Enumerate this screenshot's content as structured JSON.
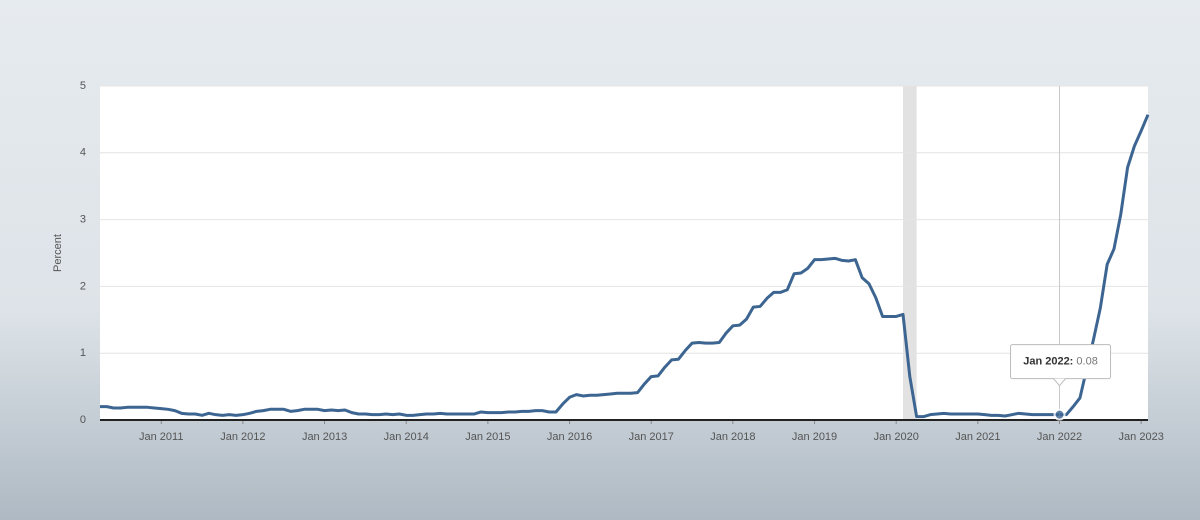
{
  "chart_data": {
    "type": "line",
    "y_label": "Percent",
    "ylim": [
      0,
      5
    ],
    "yticks": [
      0,
      1,
      2,
      3,
      4,
      5
    ],
    "grid": true,
    "xlim": [
      "2010-04",
      "2023-02"
    ],
    "xticks": [
      {
        "value": "2011-01",
        "label": "Jan 2011"
      },
      {
        "value": "2012-01",
        "label": "Jan 2012"
      },
      {
        "value": "2013-01",
        "label": "Jan 2013"
      },
      {
        "value": "2014-01",
        "label": "Jan 2014"
      },
      {
        "value": "2015-01",
        "label": "Jan 2015"
      },
      {
        "value": "2016-01",
        "label": "Jan 2016"
      },
      {
        "value": "2017-01",
        "label": "Jan 2017"
      },
      {
        "value": "2018-01",
        "label": "Jan 2018"
      },
      {
        "value": "2019-01",
        "label": "Jan 2019"
      },
      {
        "value": "2020-01",
        "label": "Jan 2020"
      },
      {
        "value": "2021-01",
        "label": "Jan 2021"
      },
      {
        "value": "2022-01",
        "label": "Jan 2022"
      },
      {
        "value": "2023-01",
        "label": "Jan 2023"
      }
    ],
    "shading": [
      {
        "start": "2020-02",
        "end": "2020-04"
      }
    ],
    "color": "#3d6591",
    "tooltip": {
      "label": "Jan 2022:",
      "x": "2022-01"
    },
    "x": [
      "2010-04",
      "2010-05",
      "2010-06",
      "2010-07",
      "2010-08",
      "2010-09",
      "2010-10",
      "2010-11",
      "2010-12",
      "2011-01",
      "2011-02",
      "2011-03",
      "2011-04",
      "2011-05",
      "2011-06",
      "2011-07",
      "2011-08",
      "2011-09",
      "2011-10",
      "2011-11",
      "2011-12",
      "2012-01",
      "2012-02",
      "2012-03",
      "2012-04",
      "2012-05",
      "2012-06",
      "2012-07",
      "2012-08",
      "2012-09",
      "2012-10",
      "2012-11",
      "2012-12",
      "2013-01",
      "2013-02",
      "2013-03",
      "2013-04",
      "2013-05",
      "2013-06",
      "2013-07",
      "2013-08",
      "2013-09",
      "2013-10",
      "2013-11",
      "2013-12",
      "2014-01",
      "2014-02",
      "2014-03",
      "2014-04",
      "2014-05",
      "2014-06",
      "2014-07",
      "2014-08",
      "2014-09",
      "2014-10",
      "2014-11",
      "2014-12",
      "2015-01",
      "2015-02",
      "2015-03",
      "2015-04",
      "2015-05",
      "2015-06",
      "2015-07",
      "2015-08",
      "2015-09",
      "2015-10",
      "2015-11",
      "2015-12",
      "2016-01",
      "2016-02",
      "2016-03",
      "2016-04",
      "2016-05",
      "2016-06",
      "2016-07",
      "2016-08",
      "2016-09",
      "2016-10",
      "2016-11",
      "2016-12",
      "2017-01",
      "2017-02",
      "2017-03",
      "2017-04",
      "2017-05",
      "2017-06",
      "2017-07",
      "2017-08",
      "2017-09",
      "2017-10",
      "2017-11",
      "2017-12",
      "2018-01",
      "2018-02",
      "2018-03",
      "2018-04",
      "2018-05",
      "2018-06",
      "2018-07",
      "2018-08",
      "2018-09",
      "2018-10",
      "2018-11",
      "2018-12",
      "2019-01",
      "2019-02",
      "2019-03",
      "2019-04",
      "2019-05",
      "2019-06",
      "2019-07",
      "2019-08",
      "2019-09",
      "2019-10",
      "2019-11",
      "2019-12",
      "2020-01",
      "2020-02",
      "2020-03",
      "2020-04",
      "2020-05",
      "2020-06",
      "2020-07",
      "2020-08",
      "2020-09",
      "2020-10",
      "2020-11",
      "2020-12",
      "2021-01",
      "2021-02",
      "2021-03",
      "2021-04",
      "2021-05",
      "2021-06",
      "2021-07",
      "2021-08",
      "2021-09",
      "2021-10",
      "2021-11",
      "2021-12",
      "2022-01",
      "2022-02",
      "2022-03",
      "2022-04",
      "2022-05",
      "2022-06",
      "2022-07",
      "2022-08",
      "2022-09",
      "2022-10",
      "2022-11",
      "2022-12",
      "2023-01",
      "2023-02"
    ],
    "values": [
      0.2,
      0.2,
      0.18,
      0.18,
      0.19,
      0.19,
      0.19,
      0.19,
      0.18,
      0.17,
      0.16,
      0.14,
      0.1,
      0.09,
      0.09,
      0.07,
      0.1,
      0.08,
      0.07,
      0.08,
      0.07,
      0.08,
      0.1,
      0.13,
      0.14,
      0.16,
      0.16,
      0.16,
      0.13,
      0.14,
      0.16,
      0.16,
      0.16,
      0.14,
      0.15,
      0.14,
      0.15,
      0.11,
      0.09,
      0.09,
      0.08,
      0.08,
      0.09,
      0.08,
      0.09,
      0.07,
      0.07,
      0.08,
      0.09,
      0.09,
      0.1,
      0.09,
      0.09,
      0.09,
      0.09,
      0.09,
      0.12,
      0.11,
      0.11,
      0.11,
      0.12,
      0.12,
      0.13,
      0.13,
      0.14,
      0.14,
      0.12,
      0.12,
      0.24,
      0.34,
      0.38,
      0.36,
      0.37,
      0.37,
      0.38,
      0.39,
      0.4,
      0.4,
      0.4,
      0.41,
      0.54,
      0.65,
      0.66,
      0.79,
      0.9,
      0.91,
      1.04,
      1.15,
      1.16,
      1.15,
      1.15,
      1.16,
      1.3,
      1.41,
      1.42,
      1.51,
      1.69,
      1.7,
      1.82,
      1.91,
      1.91,
      1.95,
      2.19,
      2.2,
      2.27,
      2.4,
      2.4,
      2.41,
      2.42,
      2.39,
      2.38,
      2.4,
      2.13,
      2.04,
      1.83,
      1.55,
      1.55,
      1.55,
      1.58,
      0.65,
      0.05,
      0.05,
      0.08,
      0.09,
      0.1,
      0.09,
      0.09,
      0.09,
      0.09,
      0.09,
      0.08,
      0.07,
      0.07,
      0.06,
      0.08,
      0.1,
      0.09,
      0.08,
      0.08,
      0.08,
      0.08,
      0.08,
      0.08,
      0.2,
      0.33,
      0.77,
      1.21,
      1.68,
      2.33,
      2.56,
      3.08,
      3.78,
      4.1,
      4.33,
      4.57
    ]
  }
}
